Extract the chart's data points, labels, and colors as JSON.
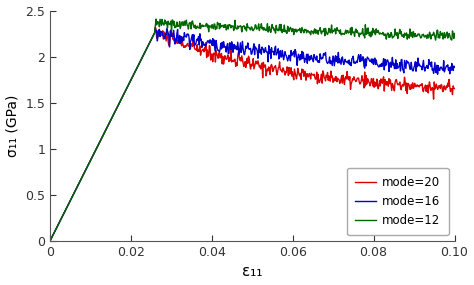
{
  "xlabel": "ε₁₁",
  "ylabel": "σ₁₁ (GPa)",
  "xlim": [
    0,
    0.1
  ],
  "ylim": [
    0,
    2.5
  ],
  "xticks": [
    0,
    0.02,
    0.04,
    0.06,
    0.08,
    0.1
  ],
  "yticks": [
    0,
    0.5,
    1.0,
    1.5,
    2.0,
    2.5
  ],
  "colors": {
    "mode20": "#dd0000",
    "mode16": "#0000cc",
    "mode12": "#006600"
  },
  "legend_labels": [
    "mode=20",
    "mode=16",
    "mode=12"
  ],
  "background_color": "#ffffff",
  "peak_strain": 0.026,
  "peak_stress_20": 2.27,
  "peak_stress_16": 2.27,
  "peak_stress_12": 2.37,
  "elastic_slope": 87.3,
  "mode20_plateau": 1.58,
  "mode16_plateau": 1.78,
  "mode12_plateau": 2.13,
  "noise_amp_20": 0.04,
  "noise_amp_16": 0.04,
  "noise_amp_12": 0.025,
  "drop_rate_20": 30,
  "drop_rate_16": 22,
  "drop_rate_12": 12,
  "n_points": 600,
  "linewidth": 1.0,
  "seed_20": 10,
  "seed_16": 20,
  "seed_12": 30
}
